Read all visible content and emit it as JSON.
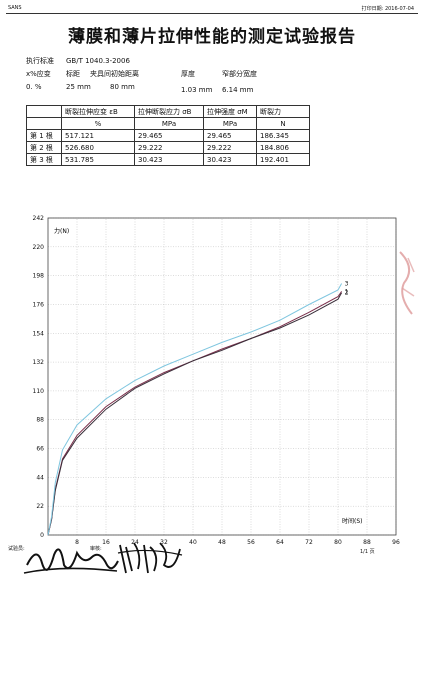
{
  "header": {
    "company": "SANS",
    "print_date_label": "打印日期:",
    "print_date": "2016-07-04"
  },
  "title": "薄膜和薄片拉伸性能的测定试验报告",
  "params": {
    "standard_label": "执行标准",
    "standard_value": "GB/T 1040.3-2006",
    "strain_label": "x%应变",
    "strain_value": "0. %",
    "gauge_label": "标距",
    "gauge_value": "25 mm",
    "grip_label": "夹具间初始距离",
    "grip_value": "80 mm",
    "thickness_label": "厚度",
    "thickness_value": "1.03 mm",
    "width_label": "窄部分宽度",
    "width_value": "6.14 mm"
  },
  "table": {
    "headers": [
      "",
      "断裂拉伸应变 εB",
      "拉伸断裂应力 σB",
      "拉伸强度 σM",
      "断裂力"
    ],
    "units": [
      "",
      "%",
      "MPa",
      "MPa",
      "N"
    ],
    "rows": [
      [
        "第 1 根",
        "517.121",
        "29.465",
        "29.465",
        "186.345"
      ],
      [
        "第 2 根",
        "526.680",
        "29.222",
        "29.222",
        "184.806"
      ],
      [
        "第 3 根",
        "531.785",
        "30.423",
        "30.423",
        "192.401"
      ]
    ]
  },
  "chart_data": {
    "type": "line",
    "ylabel": "力(N)",
    "xlabel": "时间(S)",
    "xlim": [
      0,
      96
    ],
    "ylim": [
      0,
      242
    ],
    "x_ticks": [
      "8",
      "16",
      "24",
      "32",
      "40",
      "48",
      "56",
      "64",
      "72",
      "80",
      "88",
      "96"
    ],
    "y_ticks": [
      "242",
      "220",
      "198",
      "176",
      "154",
      "132",
      "110",
      "88",
      "66",
      "44",
      "22",
      "0"
    ],
    "series": [
      {
        "name": "1",
        "color": "#7a2e4a",
        "x": [
          0,
          1,
          2,
          4,
          8,
          16,
          24,
          32,
          40,
          48,
          56,
          64,
          72,
          80,
          81
        ],
        "y": [
          0,
          12,
          35,
          58,
          76,
          98,
          113,
          124,
          133,
          142,
          150,
          159,
          170,
          182,
          186
        ]
      },
      {
        "name": "2",
        "color": "#3a2f3a",
        "x": [
          0,
          1,
          2,
          4,
          8,
          16,
          24,
          32,
          40,
          48,
          56,
          64,
          72,
          80,
          81
        ],
        "y": [
          0,
          12,
          34,
          57,
          74,
          96,
          112,
          123,
          133,
          141,
          150,
          158,
          168,
          180,
          185
        ]
      },
      {
        "name": "3",
        "color": "#7fc6df",
        "x": [
          0,
          1,
          2,
          4,
          8,
          16,
          24,
          32,
          40,
          48,
          56,
          64,
          72,
          80,
          81
        ],
        "y": [
          0,
          14,
          40,
          65,
          84,
          104,
          118,
          129,
          138,
          147,
          155,
          164,
          176,
          187,
          192
        ]
      }
    ]
  },
  "footer": {
    "tester_label": "试验员:",
    "reviewer_label": "审核:",
    "page": "1/1 页"
  }
}
